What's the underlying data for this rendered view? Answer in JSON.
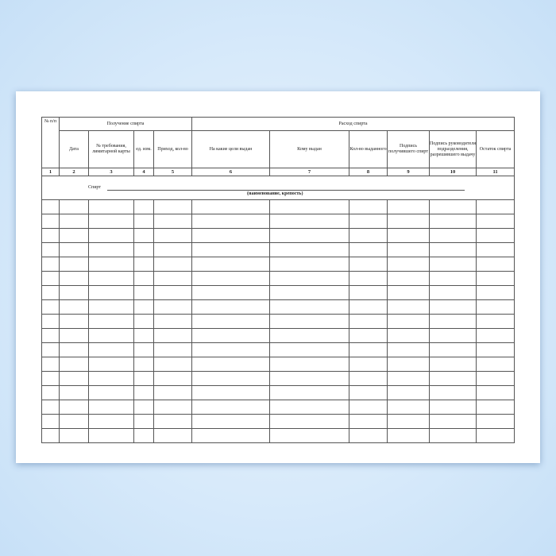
{
  "header": {
    "num_col": "№ п/п",
    "receipt_group": "Получение спирта",
    "expense_group": "Расход спирта",
    "columns": [
      "Дата",
      "№ требования, лимитарной карты",
      "ед. изм.",
      "Приход, кол-во",
      "На какие цели выдан",
      "Кому выдан",
      "Кол-во выданного",
      "Подпись получившего спирт",
      "Подпись руководителя подразделения, разрешившего выдачу",
      "Остаток спирта"
    ]
  },
  "numbers": [
    "1",
    "2",
    "3",
    "4",
    "5",
    "6",
    "7",
    "8",
    "9",
    "10",
    "11"
  ],
  "spirit_row": {
    "label": "Спирт",
    "hint": "(наименование, крепость)"
  },
  "empty_rows": 17
}
